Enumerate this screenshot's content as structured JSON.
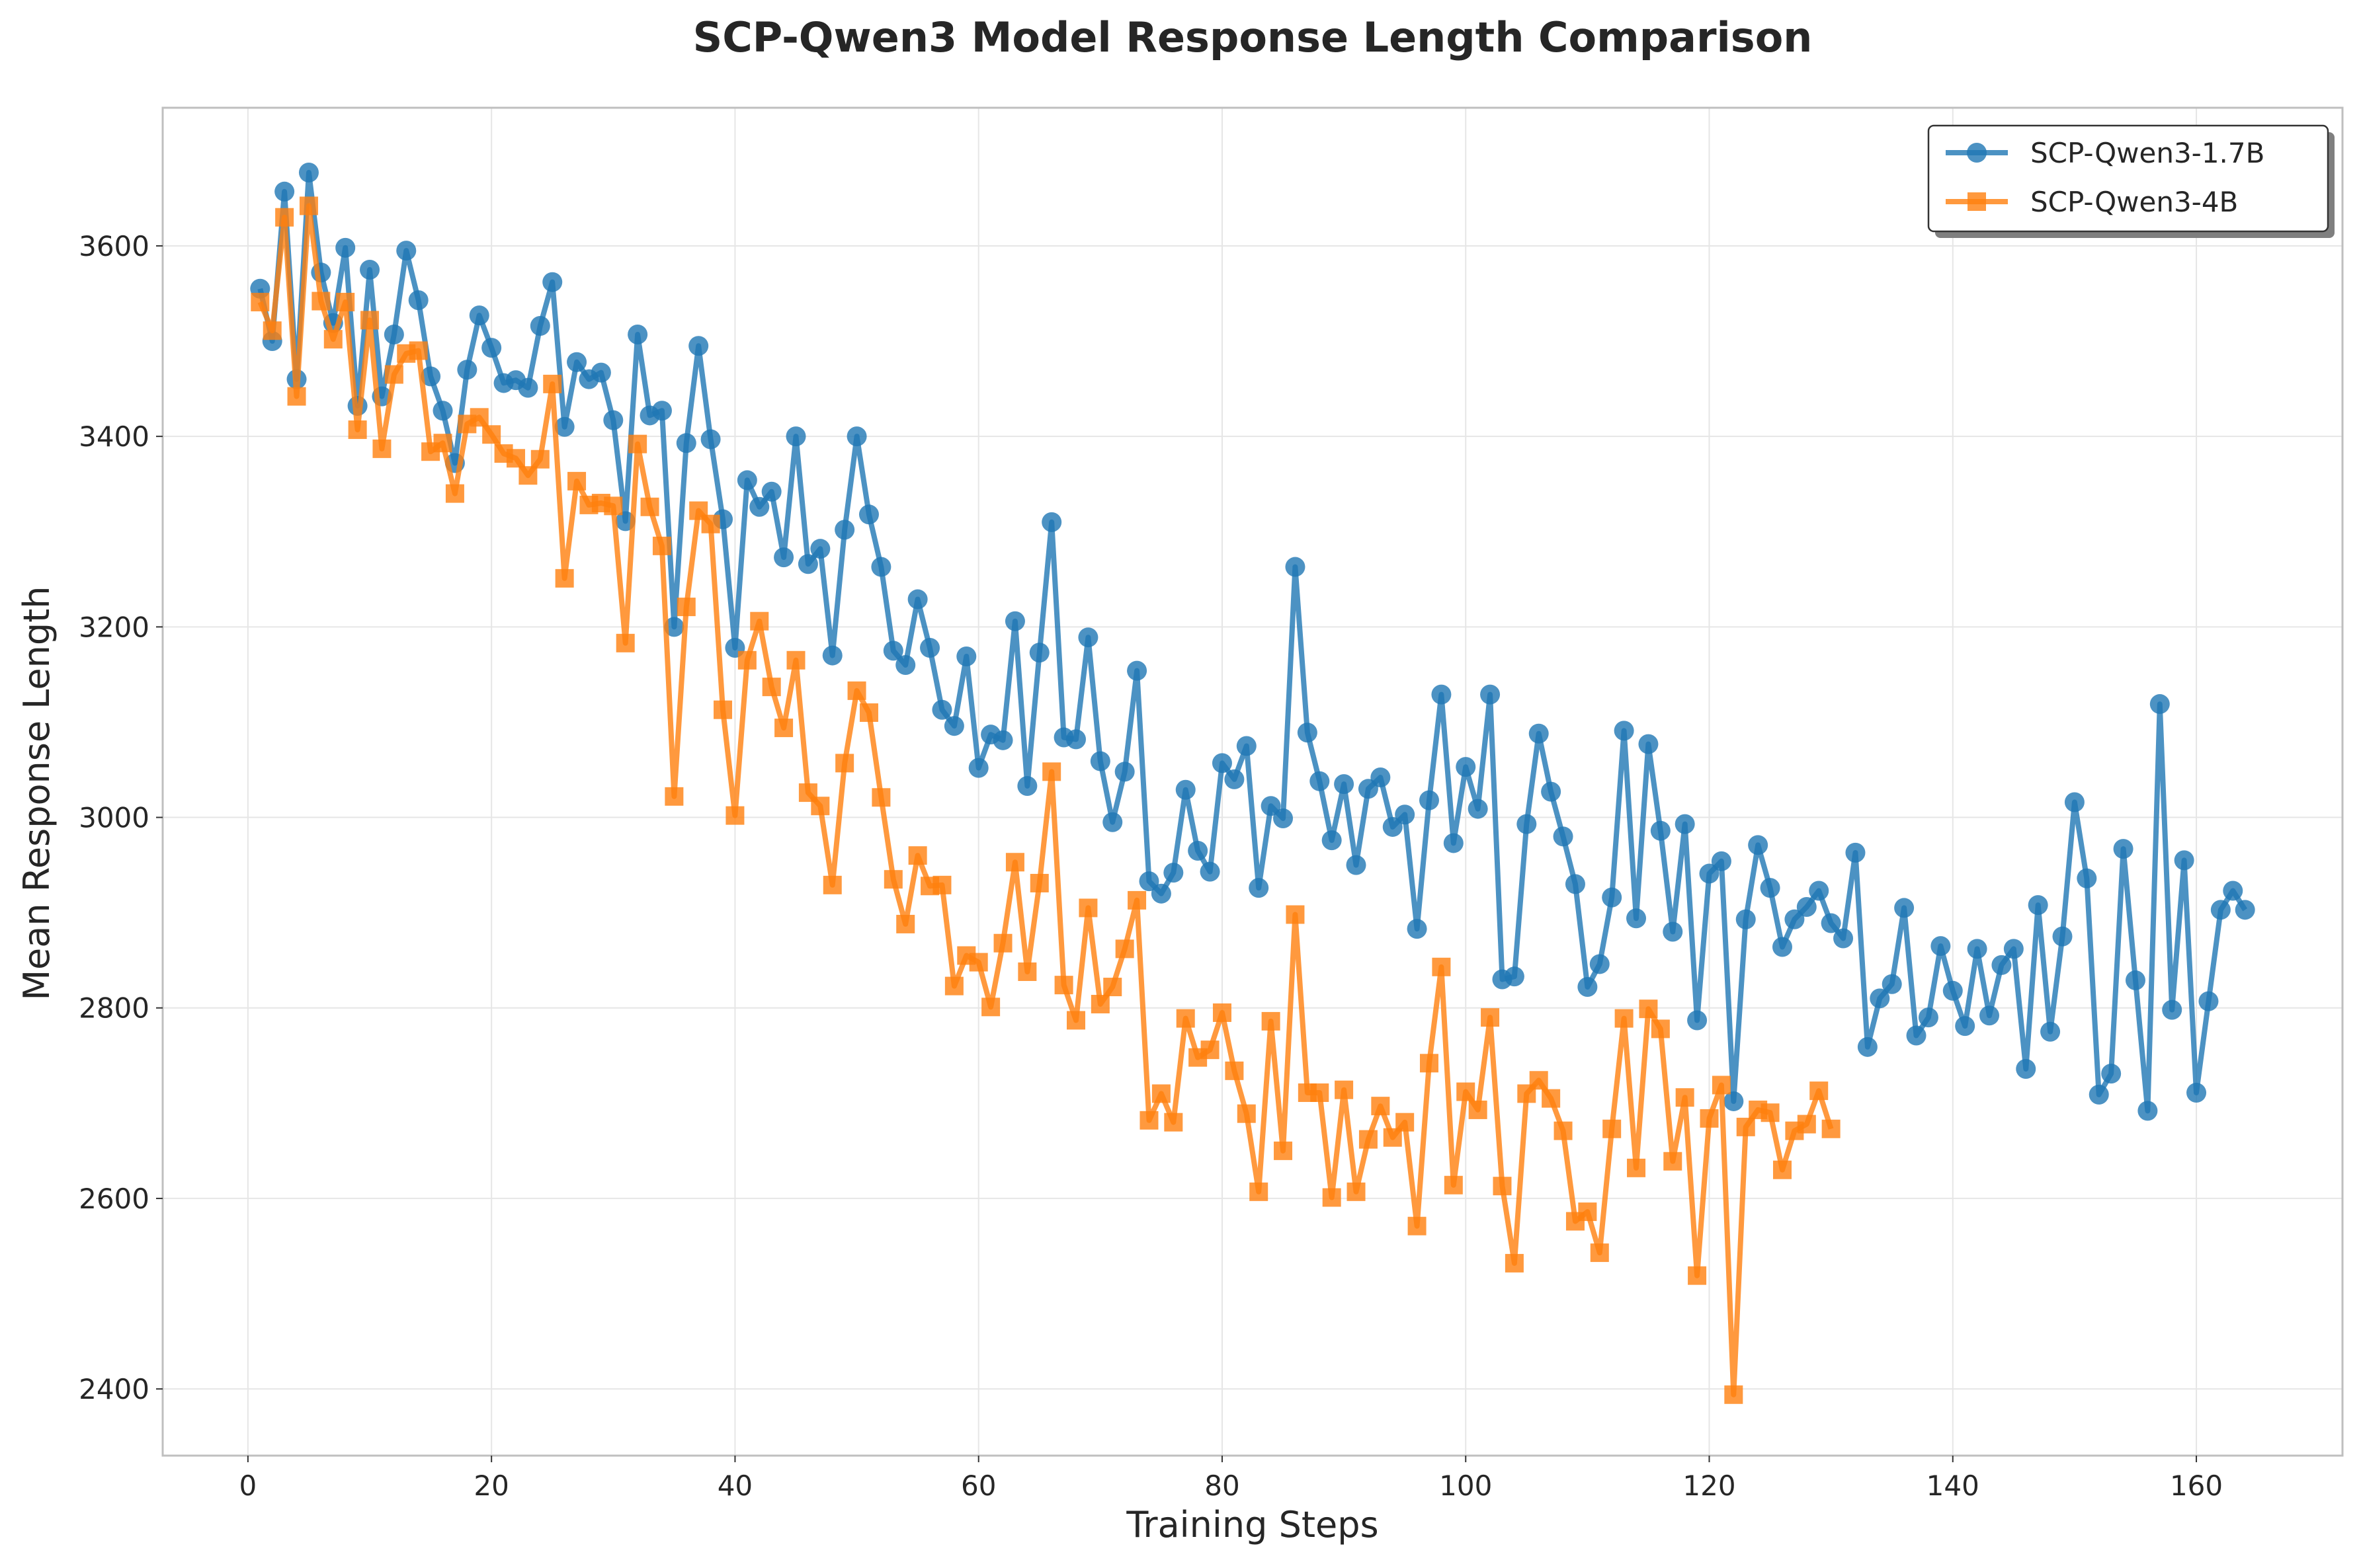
{
  "chart_data": {
    "type": "line",
    "title": "SCP-Qwen3 Model Response Length Comparison",
    "xlabel": "Training Steps",
    "ylabel": "Mean Response Length",
    "xlim": [
      -7,
      172
    ],
    "ylim": [
      2330,
      3745
    ],
    "xticks": [
      0,
      20,
      40,
      60,
      80,
      100,
      120,
      140,
      160
    ],
    "yticks": [
      2400,
      2600,
      2800,
      3000,
      3200,
      3400,
      3600
    ],
    "grid": true,
    "legend_position": "top-right",
    "series": [
      {
        "name": "SCP-Qwen3-1.7B",
        "color": "#1f77b4",
        "marker": "circle",
        "x_start": 1,
        "values": [
          3555,
          3500,
          3657,
          3460,
          3677,
          3572,
          3519,
          3598,
          3432,
          3575,
          3442,
          3507,
          3595,
          3543,
          3463,
          3427,
          3372,
          3470,
          3527,
          3493,
          3456,
          3459,
          3451,
          3516,
          3562,
          3410,
          3478,
          3460,
          3467,
          3417,
          3311,
          3507,
          3422,
          3427,
          3200,
          3393,
          3495,
          3397,
          3313,
          3178,
          3354,
          3326,
          3342,
          3273,
          3400,
          3266,
          3282,
          3170,
          3302,
          3400,
          3318,
          3263,
          3175,
          3160,
          3229,
          3178,
          3113,
          3096,
          3169,
          3052,
          3087,
          3081,
          3206,
          3033,
          3173,
          3310,
          3084,
          3082,
          3189,
          3059,
          2995,
          3048,
          3154,
          2933,
          2920,
          2942,
          3029,
          2965,
          2943,
          3057,
          3040,
          3075,
          2926,
          3012,
          2999,
          3263,
          3089,
          3038,
          2976,
          3035,
          2950,
          3030,
          3042,
          2990,
          3003,
          2883,
          3018,
          3129,
          2973,
          3053,
          3009,
          3129,
          2830,
          2833,
          2993,
          3088,
          3027,
          2980,
          2930,
          2822,
          2846,
          2916,
          3091,
          2894,
          3077,
          2986,
          2880,
          2993,
          2787,
          2941,
          2954,
          2702,
          2893,
          2971,
          2926,
          2864,
          2893,
          2906,
          2923,
          2889,
          2873,
          2963,
          2759,
          2810,
          2825,
          2905,
          2771,
          2790,
          2865,
          2818,
          2781,
          2862,
          2792,
          2845,
          2862,
          2736,
          2908,
          2775,
          2875,
          3016,
          2936,
          2709,
          2731,
          2967,
          2829,
          2692,
          3119,
          2798,
          2955,
          2711,
          2807,
          2903,
          2923,
          2903
        ]
      },
      {
        "name": "SCP-Qwen3-4B",
        "color": "#ff7f0e",
        "marker": "square",
        "x_start": 1,
        "values": [
          3541,
          3511,
          3630,
          3442,
          3642,
          3542,
          3502,
          3541,
          3407,
          3522,
          3387,
          3465,
          3487,
          3490,
          3384,
          3393,
          3340,
          3413,
          3420,
          3402,
          3382,
          3377,
          3359,
          3376,
          3455,
          3251,
          3353,
          3328,
          3330,
          3327,
          3183,
          3392,
          3326,
          3285,
          3022,
          3221,
          3322,
          3308,
          3113,
          3002,
          3165,
          3206,
          3137,
          3094,
          3165,
          3026,
          3012,
          2929,
          3057,
          3133,
          3110,
          3021,
          2935,
          2888,
          2960,
          2928,
          2929,
          2823,
          2855,
          2848,
          2801,
          2868,
          2953,
          2838,
          2931,
          3048,
          2824,
          2787,
          2905,
          2804,
          2822,
          2862,
          2913,
          2682,
          2710,
          2680,
          2789,
          2748,
          2756,
          2795,
          2734,
          2689,
          2607,
          2786,
          2650,
          2898,
          2711,
          2711,
          2601,
          2714,
          2607,
          2662,
          2697,
          2664,
          2680,
          2571,
          2742,
          2843,
          2614,
          2712,
          2693,
          2790,
          2613,
          2532,
          2710,
          2724,
          2705,
          2671,
          2576,
          2586,
          2543,
          2673,
          2789,
          2632,
          2799,
          2778,
          2639,
          2706,
          2519,
          2684,
          2719,
          2394,
          2675,
          2693,
          2690,
          2630,
          2671,
          2678,
          2713,
          2673
        ]
      }
    ]
  }
}
